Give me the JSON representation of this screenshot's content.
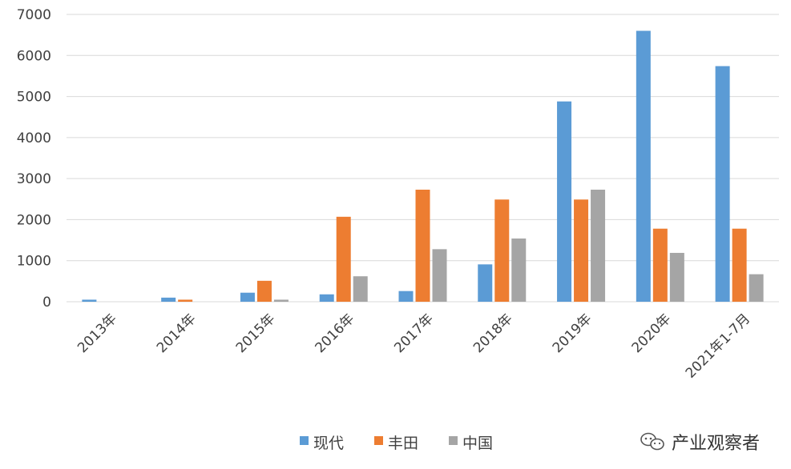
{
  "chart_data": {
    "type": "bar",
    "categories": [
      "2013年",
      "2014年",
      "2015年",
      "2016年",
      "2017年",
      "2018年",
      "2019年",
      "2020年",
      "2021年1-7月"
    ],
    "series": [
      {
        "name": "现代",
        "values": [
          50,
          100,
          220,
          180,
          260,
          910,
          4880,
          6600,
          5740
        ],
        "color": "#5B9BD5"
      },
      {
        "name": "丰田",
        "values": [
          0,
          50,
          510,
          2070,
          2730,
          2490,
          2490,
          1780,
          1780
        ],
        "color": "#ED7D31"
      },
      {
        "name": "中国",
        "values": [
          0,
          0,
          50,
          620,
          1280,
          1540,
          2730,
          1190,
          670
        ],
        "color": "#A5A5A5"
      }
    ],
    "ylim": [
      0,
      7000
    ],
    "yticks": [
      0,
      1000,
      2000,
      3000,
      4000,
      5000,
      6000,
      7000
    ],
    "grid": true,
    "legend_position": "bottom"
  },
  "watermark": {
    "text": "产业观察者",
    "icon": "wechat-icon"
  }
}
